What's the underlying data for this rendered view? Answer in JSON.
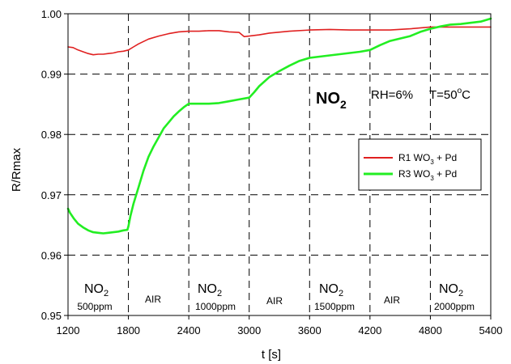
{
  "chart_data": {
    "type": "line",
    "xlabel": "t [s]",
    "ylabel": "R/Rmax",
    "xlim": [
      1200,
      5400
    ],
    "ylim": [
      0.95,
      1.0
    ],
    "x_ticks": [
      "1200",
      "1800",
      "2400",
      "3000",
      "3600",
      "4200",
      "4800",
      "5400"
    ],
    "y_ticks": [
      "0.95",
      "0.96",
      "0.97",
      "0.98",
      "0.99",
      "1.00"
    ],
    "grid": "dashed, major ticks",
    "legend_position": "right-middle",
    "series": [
      {
        "name": "R1 WO3 + Pd",
        "color": "#e02020",
        "x": [
          1200,
          1250,
          1300,
          1350,
          1400,
          1450,
          1500,
          1550,
          1600,
          1650,
          1700,
          1750,
          1800,
          1850,
          1900,
          2000,
          2100,
          2200,
          2300,
          2400,
          2500,
          2600,
          2700,
          2800,
          2900,
          2950,
          3000,
          3100,
          3200,
          3400,
          3600,
          3800,
          4000,
          4200,
          4400,
          4600,
          4800,
          5000,
          5200,
          5400
        ],
        "values": [
          0.9945,
          0.9944,
          0.994,
          0.9937,
          0.9934,
          0.9932,
          0.9933,
          0.9933,
          0.9934,
          0.9935,
          0.9937,
          0.9938,
          0.994,
          0.9945,
          0.995,
          0.9958,
          0.9963,
          0.9967,
          0.997,
          0.9971,
          0.9971,
          0.9972,
          0.9972,
          0.997,
          0.9969,
          0.9962,
          0.9963,
          0.9965,
          0.9968,
          0.9971,
          0.9973,
          0.9974,
          0.9973,
          0.9973,
          0.9973,
          0.9975,
          0.9978,
          0.9978,
          0.9978,
          0.9978
        ]
      },
      {
        "name": "R3 WO3 + Pd",
        "color": "#22ee22",
        "x": [
          1200,
          1220,
          1260,
          1300,
          1350,
          1400,
          1450,
          1500,
          1550,
          1600,
          1650,
          1700,
          1750,
          1790,
          1800,
          1820,
          1850,
          1900,
          1950,
          2000,
          2050,
          2100,
          2150,
          2200,
          2250,
          2300,
          2350,
          2400,
          2500,
          2600,
          2700,
          2800,
          2900,
          3000,
          3050,
          3100,
          3200,
          3300,
          3400,
          3500,
          3600,
          3700,
          3800,
          3900,
          4000,
          4100,
          4200,
          4300,
          4400,
          4500,
          4600,
          4700,
          4800,
          4900,
          5000,
          5100,
          5200,
          5300,
          5400
        ],
        "values": [
          0.9677,
          0.967,
          0.966,
          0.9652,
          0.9646,
          0.9641,
          0.9638,
          0.9637,
          0.9636,
          0.9637,
          0.9638,
          0.9639,
          0.9641,
          0.9642,
          0.9648,
          0.9665,
          0.9685,
          0.9712,
          0.974,
          0.9763,
          0.978,
          0.9795,
          0.981,
          0.982,
          0.983,
          0.9838,
          0.9845,
          0.9851,
          0.9851,
          0.9851,
          0.9852,
          0.9855,
          0.9858,
          0.9861,
          0.987,
          0.988,
          0.9895,
          0.9905,
          0.9914,
          0.9922,
          0.9927,
          0.9929,
          0.9931,
          0.9933,
          0.9935,
          0.9937,
          0.994,
          0.9948,
          0.9955,
          0.9959,
          0.9963,
          0.997,
          0.9975,
          0.9979,
          0.9982,
          0.9983,
          0.9985,
          0.9987,
          0.9992
        ]
      }
    ],
    "annotations": {
      "gas_label": "NO",
      "gas_sub": "2",
      "conditions": {
        "rh": "RH=6%",
        "t_prefix": "T=50",
        "t_sup": "o",
        "t_suffix": "C"
      },
      "legend": [
        {
          "label": "R1 WO",
          "sub": "3",
          "rest": " + Pd"
        },
        {
          "label": "R3 WO",
          "sub": "3",
          "rest": " + Pd"
        }
      ],
      "phases": [
        {
          "gas": "NO",
          "sub": "2",
          "conc": "500ppm"
        },
        {
          "text": "AIR"
        },
        {
          "gas": "NO",
          "sub": "2",
          "conc": "1000ppm"
        },
        {
          "text": "AIR"
        },
        {
          "gas": "NO",
          "sub": "2",
          "conc": "1500ppm"
        },
        {
          "text": "AIR"
        },
        {
          "gas": "NO",
          "sub": "2",
          "conc": "2000ppm"
        }
      ]
    }
  }
}
